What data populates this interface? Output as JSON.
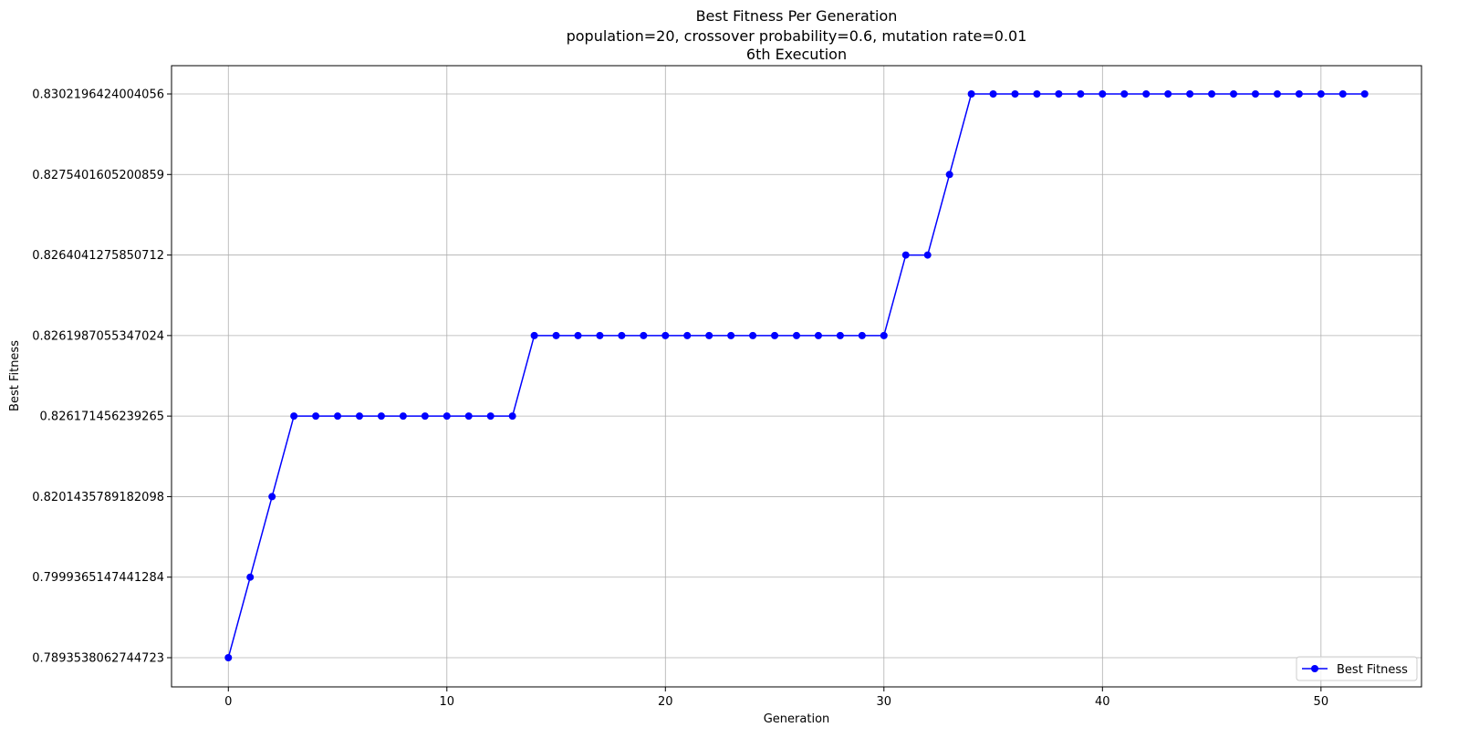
{
  "chart_data": {
    "type": "line",
    "title": "Best Fitness Per Generation",
    "subtitle": "population=20, crossover probability=0.6, mutation rate=0.01",
    "subtitle2": "6th Execution",
    "xlabel": "Generation",
    "ylabel": "Best Fitness",
    "x_ticks": [
      "0",
      "10",
      "20",
      "30",
      "40",
      "50"
    ],
    "x_tick_values": [
      0,
      10,
      20,
      30,
      40,
      50
    ],
    "xlim": [
      -2.6,
      54.6
    ],
    "y_axis_scale": "categorical (each distinct fitness value is one evenly spaced level)",
    "y_levels": [
      "0.7893538062744723",
      "0.7999365147441284",
      "0.8201435789182098",
      "0.826171456239265",
      "0.8261987055347024",
      "0.8264041275850712",
      "0.8275401605200859",
      "0.8302196424004056"
    ],
    "grid": true,
    "legend_position": "lower right",
    "series": [
      {
        "name": "Best Fitness",
        "color": "#0000ff",
        "marker": "circle",
        "x": [
          0,
          1,
          2,
          3,
          4,
          5,
          6,
          7,
          8,
          9,
          10,
          11,
          12,
          13,
          14,
          15,
          16,
          17,
          18,
          19,
          20,
          21,
          22,
          23,
          24,
          25,
          26,
          27,
          28,
          29,
          30,
          31,
          32,
          33,
          34,
          35,
          36,
          37,
          38,
          39,
          40,
          41,
          42,
          43,
          44,
          45,
          46,
          47,
          48,
          49,
          50,
          51,
          52
        ],
        "y": [
          "0.7893538062744723",
          "0.7999365147441284",
          "0.8201435789182098",
          "0.826171456239265",
          "0.826171456239265",
          "0.826171456239265",
          "0.826171456239265",
          "0.826171456239265",
          "0.826171456239265",
          "0.826171456239265",
          "0.826171456239265",
          "0.826171456239265",
          "0.826171456239265",
          "0.826171456239265",
          "0.8261987055347024",
          "0.8261987055347024",
          "0.8261987055347024",
          "0.8261987055347024",
          "0.8261987055347024",
          "0.8261987055347024",
          "0.8261987055347024",
          "0.8261987055347024",
          "0.8261987055347024",
          "0.8261987055347024",
          "0.8261987055347024",
          "0.8261987055347024",
          "0.8261987055347024",
          "0.8261987055347024",
          "0.8261987055347024",
          "0.8261987055347024",
          "0.8261987055347024",
          "0.8264041275850712",
          "0.8264041275850712",
          "0.8275401605200859",
          "0.8302196424004056",
          "0.8302196424004056",
          "0.8302196424004056",
          "0.8302196424004056",
          "0.8302196424004056",
          "0.8302196424004056",
          "0.8302196424004056",
          "0.8302196424004056",
          "0.8302196424004056",
          "0.8302196424004056",
          "0.8302196424004056",
          "0.8302196424004056",
          "0.8302196424004056",
          "0.8302196424004056",
          "0.8302196424004056",
          "0.8302196424004056",
          "0.8302196424004056",
          "0.8302196424004056",
          "0.8302196424004056"
        ]
      }
    ]
  }
}
